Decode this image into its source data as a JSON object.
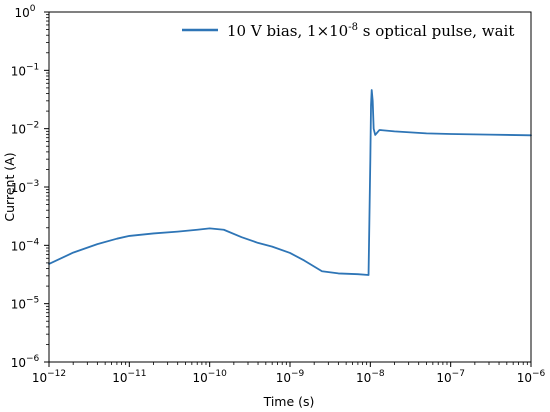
{
  "chart_data": {
    "type": "line",
    "xlabel": "Time (s)",
    "ylabel": "Current (A)",
    "xscale": "log",
    "yscale": "log",
    "xlim": [
      1e-12,
      1e-06
    ],
    "ylim": [
      1e-06,
      1
    ],
    "grid": false,
    "legend_position": "top-right",
    "x_ticks": [
      {
        "value": 1e-12,
        "base": "10",
        "exp": "−12"
      },
      {
        "value": 1e-11,
        "base": "10",
        "exp": "−11"
      },
      {
        "value": 1e-10,
        "base": "10",
        "exp": "−10"
      },
      {
        "value": 1e-09,
        "base": "10",
        "exp": "−9"
      },
      {
        "value": 1e-08,
        "base": "10",
        "exp": "−8"
      },
      {
        "value": 1e-07,
        "base": "10",
        "exp": "−7"
      },
      {
        "value": 1e-06,
        "base": "10",
        "exp": "−6"
      }
    ],
    "y_ticks": [
      {
        "value": 1,
        "base": "10",
        "exp": "0"
      },
      {
        "value": 0.1,
        "base": "10",
        "exp": "−1"
      },
      {
        "value": 0.01,
        "base": "10",
        "exp": "−2"
      },
      {
        "value": 0.001,
        "base": "10",
        "exp": "−3"
      },
      {
        "value": 0.0001,
        "base": "10",
        "exp": "−4"
      },
      {
        "value": 1e-05,
        "base": "10",
        "exp": "−5"
      },
      {
        "value": 1e-06,
        "base": "10",
        "exp": "−6"
      }
    ],
    "series": [
      {
        "name": "10 V bias, 1×10-8 s optical pulse, wait",
        "legend_parts": {
          "pre": "10 V bias, 1×10",
          "sup": "-8",
          "post": " s optical pulse, wait"
        },
        "color": "#2e75b6",
        "x": [
          1e-12,
          2e-12,
          4e-12,
          7e-12,
          1e-11,
          2e-11,
          4e-11,
          7e-11,
          1e-10,
          1.5e-10,
          2.5e-10,
          4e-10,
          6e-10,
          1e-09,
          1.5e-09,
          2.5e-09,
          4e-09,
          7e-09,
          9.5e-09,
          1e-08,
          1.02e-08,
          1.04e-08,
          1.07e-08,
          1.1e-08,
          1.15e-08,
          1.3e-08,
          2e-08,
          5e-08,
          1e-07,
          3e-07,
          1e-06
        ],
        "y": [
          4.8e-05,
          7.5e-05,
          0.000105,
          0.00013,
          0.000145,
          0.00016,
          0.000172,
          0.000185,
          0.000195,
          0.000185,
          0.000138,
          0.00011,
          9.5e-05,
          7.4e-05,
          5.5e-05,
          3.6e-05,
          3.3e-05,
          3.2e-05,
          3.1e-05,
          0.003,
          0.025,
          0.046,
          0.03,
          0.01,
          0.0078,
          0.0095,
          0.009,
          0.0083,
          0.0081,
          0.0079,
          0.0077
        ]
      }
    ]
  }
}
